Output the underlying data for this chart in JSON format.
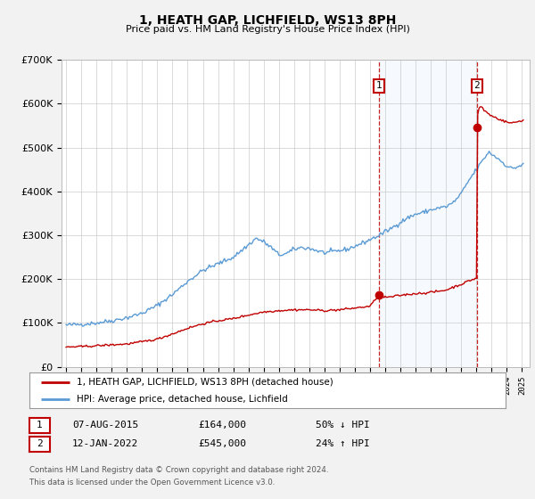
{
  "title": "1, HEATH GAP, LICHFIELD, WS13 8PH",
  "subtitle": "Price paid vs. HM Land Registry's House Price Index (HPI)",
  "ylim": [
    0,
    700000
  ],
  "yticks": [
    0,
    100000,
    200000,
    300000,
    400000,
    500000,
    600000,
    700000
  ],
  "ytick_labels": [
    "£0",
    "£100K",
    "£200K",
    "£300K",
    "£400K",
    "£500K",
    "£600K",
    "£700K"
  ],
  "xlim_start": 1994.7,
  "xlim_end": 2025.5,
  "hpi_color": "#5b9bd5",
  "price_color": "#c00000",
  "marker1_date": 2015.58,
  "marker1_price": 164000,
  "marker1_label": "07-AUG-2015",
  "marker1_value": "£164,000",
  "marker1_pct": "50% ↓ HPI",
  "marker2_date": 2022.03,
  "marker2_price": 545000,
  "marker2_label": "12-JAN-2022",
  "marker2_value": "£545,000",
  "marker2_pct": "24% ↑ HPI",
  "legend_label1": "1, HEATH GAP, LICHFIELD, WS13 8PH (detached house)",
  "legend_label2": "HPI: Average price, detached house, Lichfield",
  "footer1": "Contains HM Land Registry data © Crown copyright and database right 2024.",
  "footer2": "This data is licensed under the Open Government Licence v3.0.",
  "bg_color": "#f2f2f2",
  "plot_bg": "#ffffff",
  "grid_color": "#cccccc"
}
